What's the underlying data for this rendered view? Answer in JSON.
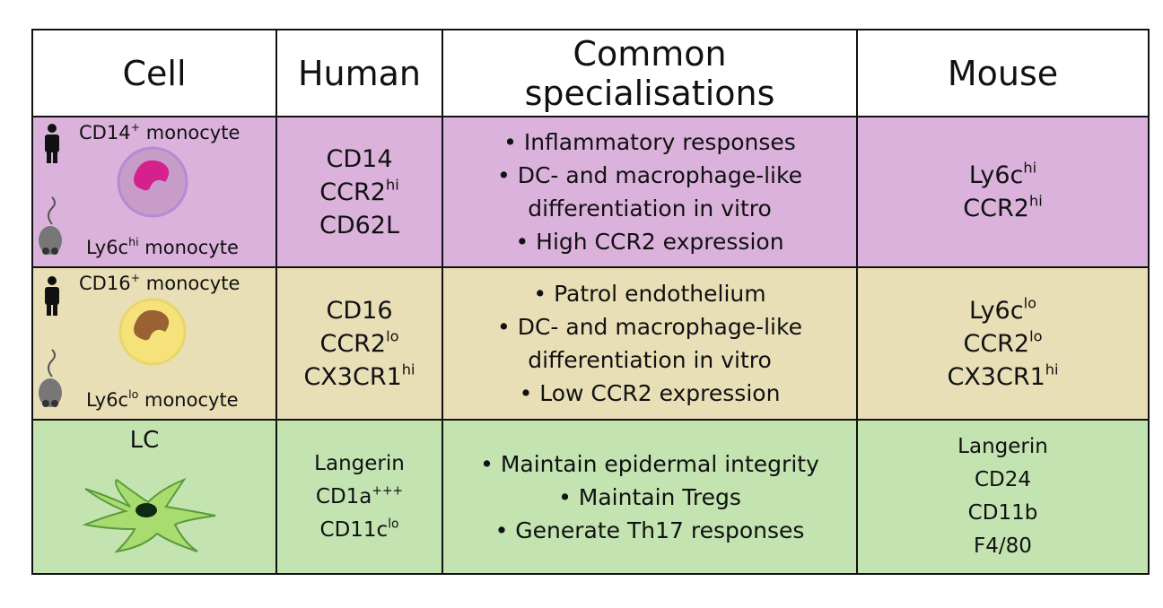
{
  "table": {
    "header": [
      "Cell",
      "Human",
      "Common specialisations",
      "Mouse"
    ],
    "rows": [
      {
        "cell": [
          [
            {
              "text": "CD14"
            },
            {
              "sup": "+"
            },
            {
              "text": " monocyte"
            }
          ],
          [
            {
              "text": "Ly6c"
            },
            {
              "sup": "hi"
            },
            {
              "text": " monocyte"
            }
          ]
        ],
        "human": [
          [
            {
              "text": "CD14"
            }
          ],
          [
            {
              "text": "CCR2"
            },
            {
              "sup": "hi"
            }
          ],
          [
            {
              "text": "CD62L"
            }
          ]
        ],
        "specialisations": [
          "• Inflammatory responses",
          "• DC- and macrophage-like differentiation in vitro",
          "• High CCR2 expression"
        ],
        "mouse": [
          [
            {
              "text": "Ly6c"
            },
            {
              "sup": "hi"
            }
          ],
          [
            {
              "text": "CCR2"
            },
            {
              "sup": "hi"
            }
          ]
        ]
      },
      {
        "cell": [
          [
            {
              "text": "CD16"
            },
            {
              "sup": "+"
            },
            {
              "text": " monocyte"
            }
          ],
          [
            {
              "text": "Ly6c"
            },
            {
              "sup": "lo"
            },
            {
              "text": " monocyte"
            }
          ]
        ],
        "human": [
          [
            {
              "text": "CD16"
            }
          ],
          [
            {
              "text": "CCR2"
            },
            {
              "sup": "lo"
            }
          ],
          [
            {
              "text": "CX3CR1"
            },
            {
              "sup": "hi"
            }
          ]
        ],
        "specialisations": [
          "• Patrol endothelium",
          "• DC- and macrophage-like differentiation in vitro",
          "• Low CCR2 expression"
        ],
        "mouse": [
          [
            {
              "text": "Ly6c"
            },
            {
              "sup": "lo"
            }
          ],
          [
            {
              "text": "CCR2"
            },
            {
              "sup": "lo"
            }
          ],
          [
            {
              "text": "CX3CR1"
            },
            {
              "sup": "hi"
            }
          ]
        ]
      },
      {
        "cell": [
          [
            {
              "text": "LC"
            }
          ]
        ],
        "human": [
          [
            {
              "text": "Langerin"
            }
          ],
          [
            {
              "text": "CD1a"
            },
            {
              "sup": "+++"
            }
          ],
          [
            {
              "text": "CD11c"
            },
            {
              "sup": "lo"
            }
          ]
        ],
        "specialisations": [
          "• Maintain epidermal integrity",
          "• Maintain Tregs",
          "• Generate Th17 responses"
        ],
        "mouse": [
          [
            {
              "text": "Langerin"
            }
          ],
          [
            {
              "text": "CD24"
            }
          ],
          [
            {
              "text": "CD11b"
            }
          ],
          [
            {
              "text": "F4/80"
            }
          ]
        ]
      }
    ]
  }
}
